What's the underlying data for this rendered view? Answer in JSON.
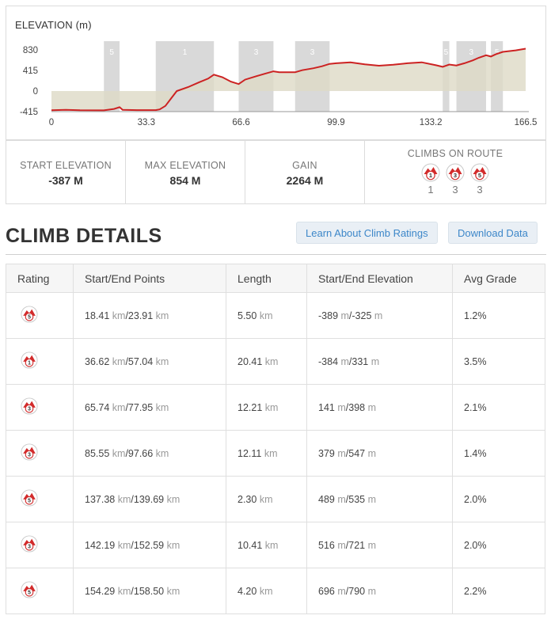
{
  "chart_data": {
    "type": "area",
    "title": "ELEVATION (m)",
    "xlabel": "",
    "ylabel": "",
    "xlim": [
      0,
      166.5
    ],
    "ylim": [
      -415,
      830
    ],
    "x_ticks": [
      "0",
      "33.3",
      "66.6",
      "99.9",
      "133.2",
      "166.5"
    ],
    "y_ticks": [
      "830",
      "415",
      "0",
      "-415"
    ],
    "grid": false,
    "series": [
      {
        "x": [
          0,
          5,
          10,
          18.41,
          22,
          23.91,
          25,
          30,
          36.62,
          38,
          40,
          42,
          44,
          48,
          52,
          55,
          57.04,
          60,
          63,
          65.74,
          68,
          72,
          75,
          77.95,
          80,
          85.55,
          88,
          92,
          95,
          97.66,
          100,
          105,
          110,
          115,
          120,
          125,
          130,
          135,
          137.38,
          139.69,
          142.19,
          145,
          148,
          150,
          152.59,
          154.29,
          156,
          158.5,
          160,
          163,
          166.5
        ],
        "y": [
          -387,
          -380,
          -388,
          -389,
          -360,
          -325,
          -380,
          -385,
          -384,
          -370,
          -300,
          -150,
          0,
          80,
          180,
          250,
          331,
          280,
          190,
          141,
          230,
          300,
          350,
          398,
          380,
          379,
          420,
          460,
          500,
          547,
          560,
          580,
          540,
          510,
          530,
          560,
          580,
          520,
          489,
          535,
          516,
          560,
          620,
          670,
          721,
          696,
          740,
          790,
          800,
          820,
          854
        ]
      }
    ],
    "climb_bands": [
      {
        "start": 18.41,
        "end": 23.91,
        "label": "5"
      },
      {
        "start": 36.62,
        "end": 57.04,
        "label": "1"
      },
      {
        "start": 65.74,
        "end": 77.95,
        "label": "3"
      },
      {
        "start": 85.55,
        "end": 97.66,
        "label": "3"
      },
      {
        "start": 137.38,
        "end": 139.69,
        "label": "5"
      },
      {
        "start": 142.19,
        "end": 152.59,
        "label": "3"
      },
      {
        "start": 154.29,
        "end": 158.5,
        "label": "5"
      }
    ],
    "colors": {
      "line": "#cc2222",
      "area": "#ddd9c6",
      "band": "#d9d9d9"
    }
  },
  "stats": {
    "start_label": "START ELEVATION",
    "start_value": "-387 M",
    "max_label": "MAX ELEVATION",
    "max_value": "854 M",
    "gain_label": "GAIN",
    "gain_value": "2264 M",
    "climbs_label": "CLIMBS ON ROUTE",
    "climbs": [
      {
        "category": "1",
        "count": "1"
      },
      {
        "category": "3",
        "count": "3"
      },
      {
        "category": "5",
        "count": "3"
      }
    ]
  },
  "section": {
    "title": "CLIMB DETAILS",
    "learn_button": "Learn About Climb Ratings",
    "download_button": "Download Data"
  },
  "table": {
    "headers": [
      "Rating",
      "Start/End Points",
      "Length",
      "Start/End Elevation",
      "Avg Grade"
    ],
    "unit_km": "km",
    "unit_m": "m",
    "rows": [
      {
        "rating": "5",
        "start_km": "18.41",
        "end_km": "23.91",
        "length": "5.50",
        "start_elev": "-389",
        "end_elev": "-325",
        "grade": "1.2%"
      },
      {
        "rating": "1",
        "start_km": "36.62",
        "end_km": "57.04",
        "length": "20.41",
        "start_elev": "-384",
        "end_elev": "331",
        "grade": "3.5%"
      },
      {
        "rating": "3",
        "start_km": "65.74",
        "end_km": "77.95",
        "length": "12.21",
        "start_elev": "141",
        "end_elev": "398",
        "grade": "2.1%"
      },
      {
        "rating": "3",
        "start_km": "85.55",
        "end_km": "97.66",
        "length": "12.11",
        "start_elev": "379",
        "end_elev": "547",
        "grade": "1.4%"
      },
      {
        "rating": "5",
        "start_km": "137.38",
        "end_km": "139.69",
        "length": "2.30",
        "start_elev": "489",
        "end_elev": "535",
        "grade": "2.0%"
      },
      {
        "rating": "3",
        "start_km": "142.19",
        "end_km": "152.59",
        "length": "10.41",
        "start_elev": "516",
        "end_elev": "721",
        "grade": "2.0%"
      },
      {
        "rating": "5",
        "start_km": "154.29",
        "end_km": "158.50",
        "length": "4.20",
        "start_elev": "696",
        "end_elev": "790",
        "grade": "2.2%"
      }
    ]
  }
}
